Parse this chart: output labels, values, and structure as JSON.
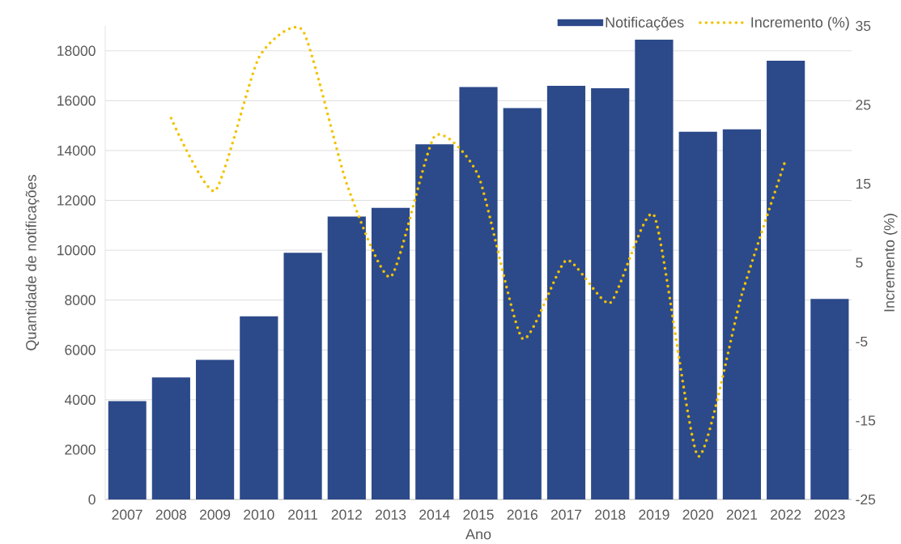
{
  "chart_data": {
    "type": "bar",
    "xlabel": "Ano",
    "ylabel": "Quantidade de notificações",
    "y2label": "Incremento (%)",
    "categories": [
      "2007",
      "2008",
      "2009",
      "2010",
      "2011",
      "2012",
      "2013",
      "2014",
      "2015",
      "2016",
      "2017",
      "2018",
      "2019",
      "2020",
      "2021",
      "2022",
      "2023"
    ],
    "series": [
      {
        "name": "Notificações",
        "color": "#2c4a8a",
        "values": [
          3950,
          4900,
          5600,
          7350,
          9900,
          11350,
          11700,
          14250,
          16550,
          15700,
          16600,
          16500,
          18450,
          14750,
          14850,
          17600,
          8050
        ]
      },
      {
        "name": "Incremento (%)",
        "type": "line",
        "axis": "y2",
        "color": "#f2c200",
        "line_style": "dotted",
        "marker": "none",
        "values": [
          null,
          23.3,
          14.1,
          31,
          34.4,
          15,
          3.2,
          21,
          16,
          -4.6,
          5.3,
          -0.1,
          11,
          -19.5,
          1,
          18.1,
          null
        ]
      }
    ],
    "ylim": [
      0,
      19000
    ],
    "yticks": [
      0,
      2000,
      4000,
      6000,
      8000,
      10000,
      12000,
      14000,
      16000,
      18000
    ],
    "y2lim": [
      -25,
      35
    ],
    "y2ticks": [
      -25,
      -15,
      -5,
      5,
      15,
      25,
      35
    ],
    "grid": "y",
    "legend": "top right"
  }
}
